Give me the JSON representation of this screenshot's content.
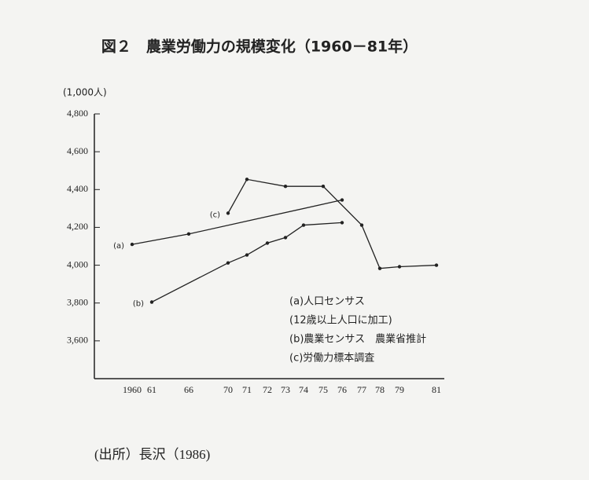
{
  "chart_data": {
    "type": "line",
    "title": "図２　農業労働力の規模変化（1960－81年）",
    "y_unit": "(1,000人)",
    "source": "(出所）長沢（1986)",
    "notes": [
      "(a)人口センサス",
      "(12歳以上人口に加工)",
      "(b)農業センサス　農業省推計",
      "(c)労働力標本調査"
    ],
    "xticks": [
      {
        "value": 1960,
        "label": "1960"
      },
      {
        "value": 1961,
        "label": "61"
      },
      {
        "value": 1966,
        "label": "66"
      },
      {
        "value": 1970,
        "label": "70"
      },
      {
        "value": 1971,
        "label": "71"
      },
      {
        "value": 1972,
        "label": "72"
      },
      {
        "value": 1973,
        "label": "73"
      },
      {
        "value": 1974,
        "label": "74"
      },
      {
        "value": 1975,
        "label": "75"
      },
      {
        "value": 1976,
        "label": "76"
      },
      {
        "value": 1977,
        "label": "77"
      },
      {
        "value": 1978,
        "label": "78"
      },
      {
        "value": 1979,
        "label": "79"
      },
      {
        "value": 1981,
        "label": "81"
      }
    ],
    "ylim": [
      3400,
      4800
    ],
    "yticks": [
      {
        "value": 3600,
        "label": "3,600"
      },
      {
        "value": 3800,
        "label": "3,800"
      },
      {
        "value": 4000,
        "label": "4,000"
      },
      {
        "value": 4200,
        "label": "4,200"
      },
      {
        "value": 4400,
        "label": "4,400"
      },
      {
        "value": 4600,
        "label": "4,600"
      },
      {
        "value": 4800,
        "label": "4,800"
      }
    ],
    "grid": false,
    "series": [
      {
        "name": "(a)",
        "color": "#222",
        "x": [
          1960,
          1966,
          1976
        ],
        "values": [
          4110,
          4165,
          4345
        ]
      },
      {
        "name": "(b)",
        "color": "#222",
        "x": [
          1961,
          1970,
          1971,
          1972,
          1973,
          1974,
          1976
        ],
        "values": [
          3805,
          4012,
          4054,
          4117,
          4146,
          4212,
          4225
        ]
      },
      {
        "name": "(c)",
        "color": "#222",
        "x": [
          1970,
          1971,
          1973,
          1975,
          1977,
          1978,
          1979,
          1981
        ],
        "values": [
          4275,
          4454,
          4417,
          4417,
          4212,
          3983,
          3992,
          4000
        ]
      }
    ]
  }
}
